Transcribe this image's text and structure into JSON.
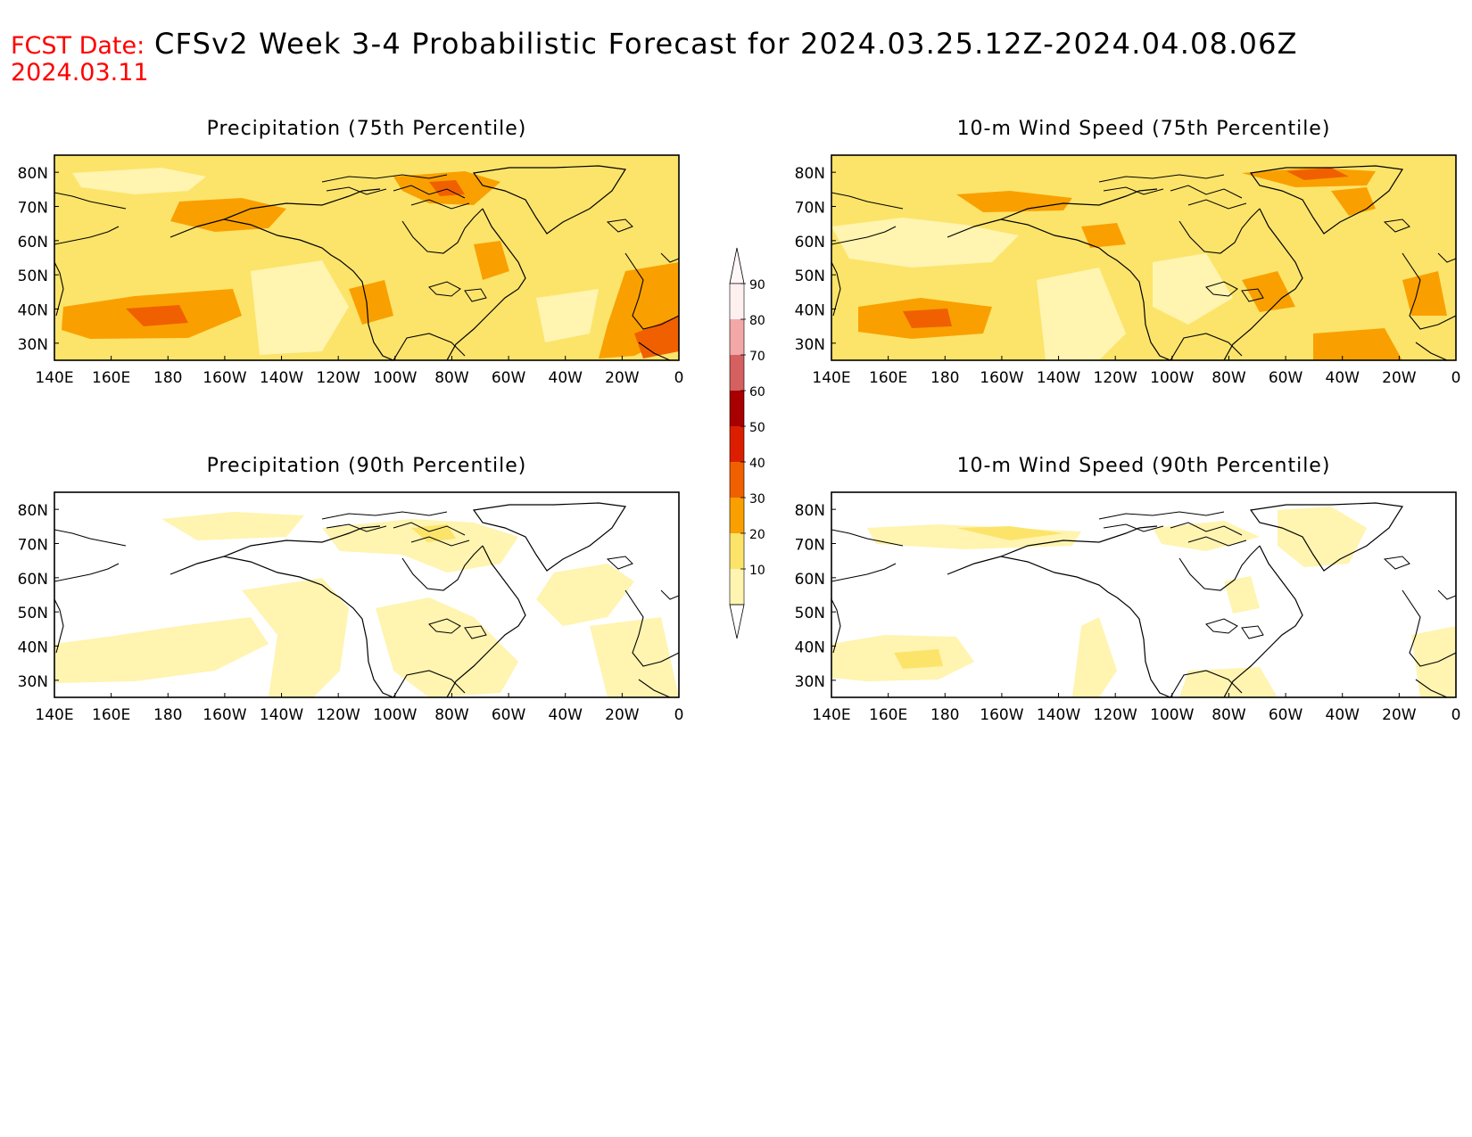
{
  "header": {
    "fcst_label": "FCST Date:",
    "fcst_date": "2024.03.11",
    "title": "CFSv2 Week 3-4 Probabilistic Forecast for 2024.03.25.12Z-2024.04.08.06Z"
  },
  "panels": [
    {
      "id": "precip-75",
      "title": "Precipitation (75th Percentile)",
      "level": "75"
    },
    {
      "id": "wind-75",
      "title": "10-m Wind Speed (75th Percentile)",
      "level": "75"
    },
    {
      "id": "precip-90",
      "title": "Precipitation (90th Percentile)",
      "level": "90"
    },
    {
      "id": "wind-90",
      "title": "10-m Wind Speed (90th Percentile)",
      "level": "90"
    }
  ],
  "axes": {
    "lon_labels": [
      "140E",
      "160E",
      "180",
      "160W",
      "140W",
      "120W",
      "100W",
      "80W",
      "60W",
      "40W",
      "20W",
      "0"
    ],
    "lat_labels": [
      "80N",
      "70N",
      "60N",
      "50N",
      "40N",
      "30N"
    ],
    "lat_range": [
      25,
      85
    ],
    "lon_range": [
      "140E",
      "0"
    ]
  },
  "colorbar": {
    "labels": [
      "90",
      "80",
      "70",
      "60",
      "50",
      "40",
      "30",
      "20",
      "10"
    ],
    "colors": [
      "#fff0f0",
      "#f4a7a7",
      "#d56060",
      "#a80000",
      "#dc1e00",
      "#f06000",
      "#f9a000",
      "#fce46a",
      "#fff4b0"
    ]
  },
  "palette": {
    "c10": "#fff4b0",
    "c20": "#fce46a",
    "c30": "#f9a000",
    "c40": "#f06000",
    "c50": "#dc1e00",
    "fcst_color": "#ff0000",
    "coast": "#000000"
  }
}
